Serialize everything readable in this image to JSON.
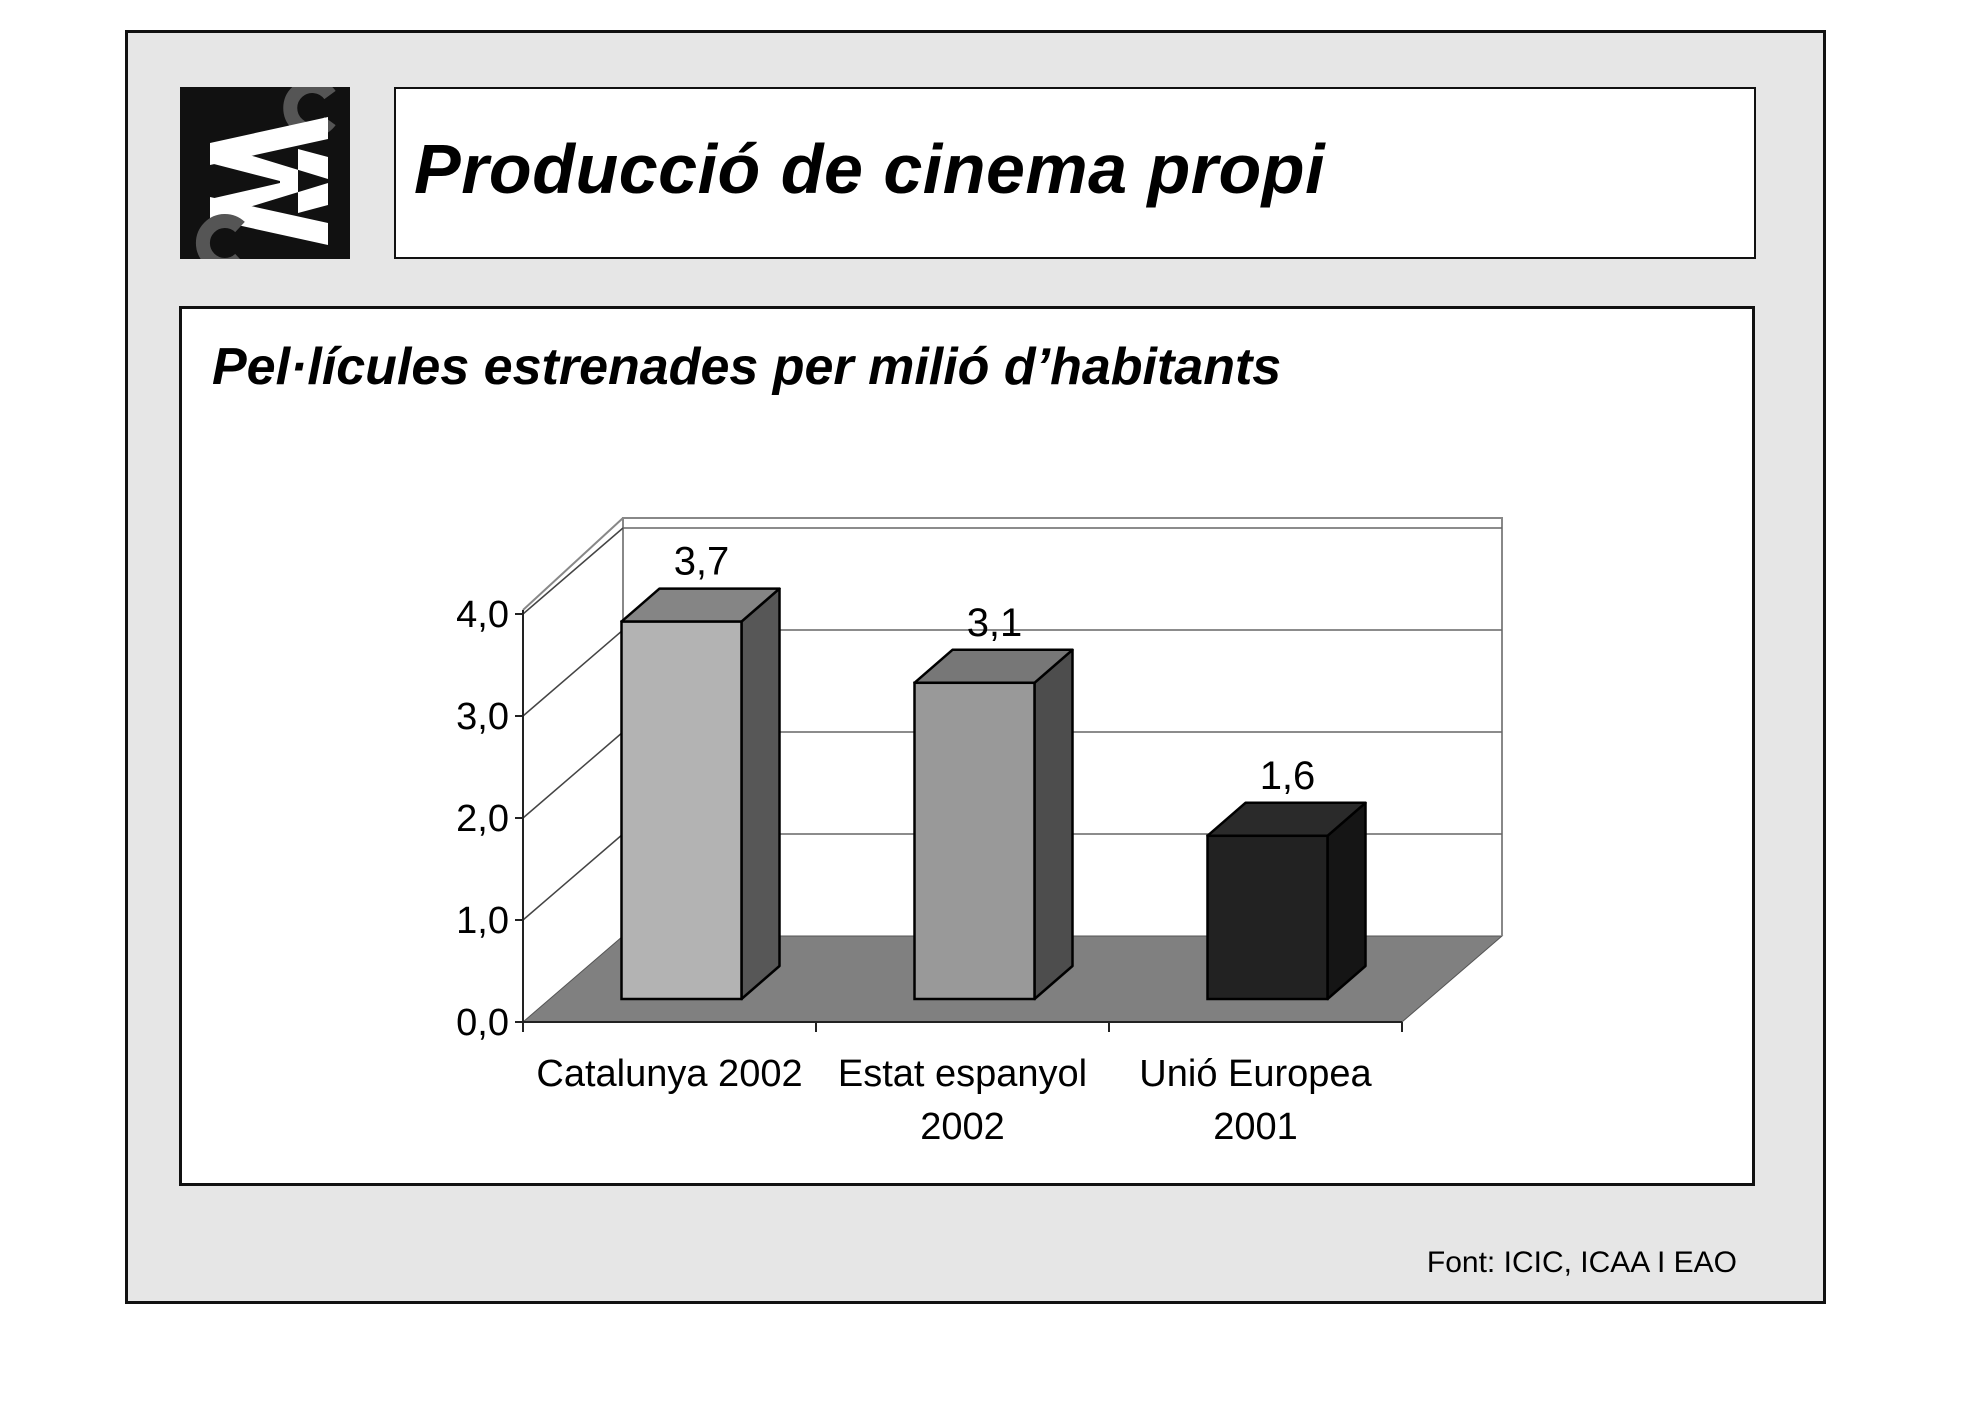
{
  "header": {
    "title": "Producció de cinema propi",
    "logo_name": "cac-logo"
  },
  "footer": {
    "source": "Font: ICIC, ICAA I EAO"
  },
  "chart_data": {
    "type": "bar",
    "title": "Pel·lícules estrenades per milió d’habitants",
    "xlabel": "",
    "ylabel": "",
    "categories": [
      [
        "Catalunya 2002"
      ],
      [
        "Estat espanyol",
        "2002"
      ],
      [
        "Unió Europea",
        "2001"
      ]
    ],
    "values": [
      3.7,
      3.1,
      1.6
    ],
    "value_labels": [
      "3,7",
      "3,1",
      "1,6"
    ],
    "yticks": [
      0,
      1,
      2,
      3,
      4
    ],
    "ytick_labels": [
      "0,0",
      "1,0",
      "2,0",
      "3,0",
      "4,0"
    ],
    "ylim": [
      0,
      4
    ],
    "grid": true,
    "three_d": true,
    "colors": {
      "bars": [
        "#b3b3b3",
        "#999999",
        "#222222"
      ],
      "bar_tops": [
        "#858585",
        "#777777",
        "#2a2a2a"
      ],
      "bar_sides": [
        "#575757",
        "#4d4d4d",
        "#151515"
      ],
      "floor": "#808080"
    }
  }
}
